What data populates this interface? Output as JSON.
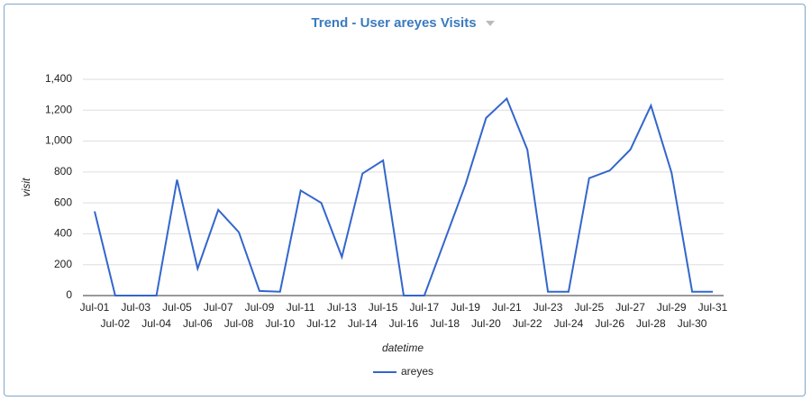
{
  "chart_data": {
    "type": "line",
    "title": "Trend - User areyes Visits",
    "x_label": "datetime",
    "y_label": "visit",
    "categories": [
      "Jul-01",
      "Jul-02",
      "Jul-03",
      "Jul-04",
      "Jul-05",
      "Jul-06",
      "Jul-07",
      "Jul-08",
      "Jul-09",
      "Jul-10",
      "Jul-11",
      "Jul-12",
      "Jul-13",
      "Jul-14",
      "Jul-15",
      "Jul-16",
      "Jul-17",
      "Jul-18",
      "Jul-19",
      "Jul-20",
      "Jul-21",
      "Jul-22",
      "Jul-23",
      "Jul-24",
      "Jul-25",
      "Jul-26",
      "Jul-27",
      "Jul-28",
      "Jul-29",
      "Jul-30",
      "Jul-31"
    ],
    "series": [
      {
        "name": "areyes",
        "color": "#3366cc",
        "values": [
          545,
          0,
          0,
          0,
          750,
          175,
          555,
          410,
          30,
          25,
          680,
          600,
          250,
          790,
          875,
          0,
          0,
          360,
          720,
          1150,
          1275,
          945,
          25,
          25,
          760,
          810,
          945,
          1230,
          795,
          25,
          25
        ]
      }
    ],
    "ylim": [
      0,
      1400
    ],
    "yticks": [
      0,
      200,
      400,
      600,
      800,
      {
        "value": 1000,
        "label": "1,000"
      },
      {
        "value": 1200,
        "label": "1,200"
      },
      {
        "value": 1400,
        "label": "1,400"
      }
    ],
    "grid": true,
    "legend": "bottom"
  }
}
